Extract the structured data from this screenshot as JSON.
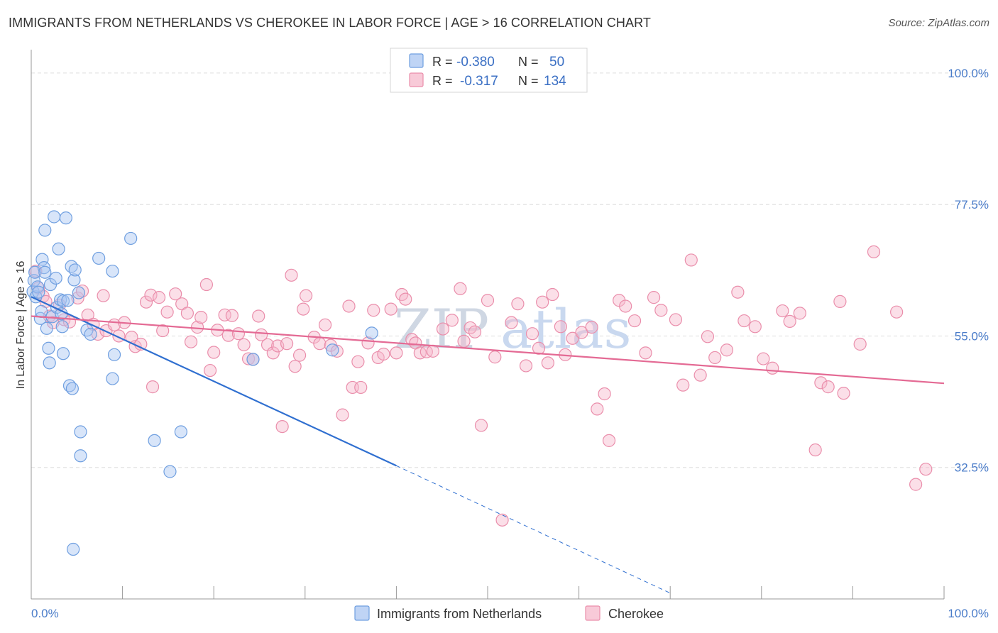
{
  "header": {
    "title": "IMMIGRANTS FROM NETHERLANDS VS CHEROKEE IN LABOR FORCE | AGE > 16 CORRELATION CHART",
    "source": "Source: ZipAtlas.com"
  },
  "watermark": {
    "zip": "ZIP",
    "atlas": "atlas"
  },
  "colors": {
    "blue_fill": "#a9c6f2",
    "blue_stroke": "#6f9fe0",
    "blue_line": "#2f6fd0",
    "pink_fill": "#f6b8cb",
    "pink_stroke": "#ea8eab",
    "pink_line": "#e46a94",
    "grid": "#dddddd",
    "axis": "#999999"
  },
  "legend": {
    "rows": [
      {
        "r_label": "R =",
        "r_value": "-0.380",
        "n_label": "N =",
        "n_value": "50"
      },
      {
        "r_label": "R =",
        "r_value": "-0.317",
        "n_label": "N =",
        "n_value": "134"
      }
    ]
  },
  "chart_data": {
    "type": "scatter",
    "title": "IMMIGRANTS FROM NETHERLANDS VS CHEROKEE IN LABOR FORCE | AGE > 16 CORRELATION CHART",
    "ylabel": "In Labor Force | Age > 16",
    "xlabel": "",
    "xlim": [
      0,
      100
    ],
    "ylim": [
      10,
      104
    ],
    "x_tick_labels": [
      "0.0%",
      "100.0%"
    ],
    "y_ticks": [
      32.5,
      55.0,
      77.5,
      100.0
    ],
    "y_tick_labels": [
      "32.5%",
      "55.0%",
      "77.5%",
      "100.0%"
    ],
    "grid": true,
    "legend_position": "top-center",
    "series": [
      {
        "name": "Immigrants from Netherlands",
        "stats": {
          "r": -0.38,
          "n": 50
        },
        "trend": {
          "x0": 0.0,
          "y0": 61.7,
          "x1": 40.0,
          "y1": 32.8,
          "dash_to_x": 70.0,
          "dash_to_y": 11.0
        },
        "points": [
          [
            0.2,
            62.6
          ],
          [
            0.3,
            64.5
          ],
          [
            0.4,
            65.9
          ],
          [
            0.5,
            61.7
          ],
          [
            0.7,
            63.4
          ],
          [
            0.8,
            62.5
          ],
          [
            1.0,
            58.0
          ],
          [
            1.1,
            59.2
          ],
          [
            1.2,
            68.1
          ],
          [
            1.4,
            66.7
          ],
          [
            1.5,
            65.9
          ],
          [
            1.5,
            73.1
          ],
          [
            1.7,
            56.3
          ],
          [
            1.9,
            52.9
          ],
          [
            2.0,
            50.4
          ],
          [
            2.1,
            63.8
          ],
          [
            2.3,
            58.3
          ],
          [
            2.5,
            75.4
          ],
          [
            2.7,
            64.9
          ],
          [
            2.8,
            59.9
          ],
          [
            3.0,
            69.9
          ],
          [
            3.2,
            61.2
          ],
          [
            3.3,
            58.8
          ],
          [
            3.4,
            56.6
          ],
          [
            3.5,
            61.0
          ],
          [
            3.5,
            52.0
          ],
          [
            3.8,
            75.2
          ],
          [
            4.0,
            61.1
          ],
          [
            4.2,
            46.5
          ],
          [
            4.4,
            66.9
          ],
          [
            4.5,
            46.0
          ],
          [
            4.6,
            18.5
          ],
          [
            4.7,
            64.6
          ],
          [
            4.8,
            66.3
          ],
          [
            5.2,
            62.4
          ],
          [
            5.4,
            34.5
          ],
          [
            5.4,
            38.6
          ],
          [
            6.1,
            56.0
          ],
          [
            6.5,
            55.3
          ],
          [
            7.4,
            68.3
          ],
          [
            8.9,
            66.1
          ],
          [
            8.9,
            47.7
          ],
          [
            9.1,
            51.8
          ],
          [
            10.9,
            71.7
          ],
          [
            13.5,
            37.1
          ],
          [
            15.2,
            31.8
          ],
          [
            16.4,
            38.6
          ],
          [
            24.3,
            51.0
          ],
          [
            33.0,
            52.6
          ],
          [
            37.3,
            55.5
          ]
        ]
      },
      {
        "name": "Cherokee",
        "stats": {
          "r": -0.317,
          "n": 134
        },
        "trend": {
          "x0": 0.0,
          "y0": 58.4,
          "x1": 100.0,
          "y1": 46.9
        },
        "points": [
          [
            0.5,
            66.1
          ],
          [
            0.8,
            63.2
          ],
          [
            1.3,
            61.8
          ],
          [
            1.6,
            60.9
          ],
          [
            2.0,
            58.4
          ],
          [
            2.4,
            57.3
          ],
          [
            3.1,
            60.3
          ],
          [
            3.6,
            57.8
          ],
          [
            4.2,
            57.4
          ],
          [
            5.1,
            61.5
          ],
          [
            5.6,
            62.7
          ],
          [
            6.2,
            58.6
          ],
          [
            6.8,
            57.0
          ],
          [
            7.3,
            55.3
          ],
          [
            7.9,
            61.9
          ],
          [
            8.2,
            55.9
          ],
          [
            9.1,
            56.9
          ],
          [
            9.6,
            55.0
          ],
          [
            10.2,
            57.3
          ],
          [
            11.0,
            54.8
          ],
          [
            11.4,
            53.2
          ],
          [
            12.0,
            53.6
          ],
          [
            12.6,
            60.8
          ],
          [
            13.1,
            62.0
          ],
          [
            13.3,
            46.3
          ],
          [
            14.0,
            61.6
          ],
          [
            14.4,
            55.9
          ],
          [
            14.9,
            59.1
          ],
          [
            15.8,
            62.2
          ],
          [
            16.5,
            60.5
          ],
          [
            17.1,
            58.9
          ],
          [
            17.5,
            54.0
          ],
          [
            18.2,
            56.5
          ],
          [
            18.6,
            58.2
          ],
          [
            19.2,
            63.8
          ],
          [
            19.6,
            49.1
          ],
          [
            20.0,
            52.2
          ],
          [
            20.4,
            56.0
          ],
          [
            21.2,
            58.6
          ],
          [
            21.6,
            55.1
          ],
          [
            22.0,
            58.5
          ],
          [
            22.7,
            55.4
          ],
          [
            23.3,
            53.5
          ],
          [
            23.8,
            51.1
          ],
          [
            24.3,
            51.0
          ],
          [
            24.9,
            58.4
          ],
          [
            25.2,
            55.2
          ],
          [
            25.9,
            53.5
          ],
          [
            26.5,
            52.1
          ],
          [
            27.0,
            53.3
          ],
          [
            27.5,
            39.5
          ],
          [
            28.0,
            53.7
          ],
          [
            28.5,
            65.4
          ],
          [
            28.9,
            49.8
          ],
          [
            29.4,
            51.7
          ],
          [
            29.8,
            59.6
          ],
          [
            30.1,
            61.9
          ],
          [
            31.0,
            54.8
          ],
          [
            31.6,
            53.7
          ],
          [
            32.2,
            56.9
          ],
          [
            32.8,
            53.4
          ],
          [
            33.5,
            52.4
          ],
          [
            34.1,
            41.5
          ],
          [
            34.8,
            60.1
          ],
          [
            35.2,
            46.2
          ],
          [
            35.8,
            50.6
          ],
          [
            36.1,
            46.2
          ],
          [
            36.9,
            53.8
          ],
          [
            37.5,
            59.4
          ],
          [
            38.0,
            51.3
          ],
          [
            38.6,
            51.9
          ],
          [
            39.4,
            59.6
          ],
          [
            40.0,
            52.1
          ],
          [
            40.6,
            62.1
          ],
          [
            41.0,
            61.3
          ],
          [
            41.7,
            54.4
          ],
          [
            42.1,
            53.8
          ],
          [
            42.6,
            52.1
          ],
          [
            43.3,
            52.3
          ],
          [
            44.0,
            52.4
          ],
          [
            45.1,
            56.2
          ],
          [
            46.1,
            57.7
          ],
          [
            47.0,
            63.1
          ],
          [
            47.4,
            54.1
          ],
          [
            48.1,
            56.4
          ],
          [
            48.6,
            55.7
          ],
          [
            49.3,
            39.7
          ],
          [
            50.0,
            61.1
          ],
          [
            50.8,
            51.4
          ],
          [
            51.6,
            23.5
          ],
          [
            52.6,
            57.3
          ],
          [
            53.3,
            60.5
          ],
          [
            54.2,
            49.9
          ],
          [
            54.9,
            55.4
          ],
          [
            55.6,
            52.9
          ],
          [
            56.0,
            60.8
          ],
          [
            56.6,
            50.4
          ],
          [
            57.1,
            62.1
          ],
          [
            58.0,
            56.6
          ],
          [
            58.5,
            51.8
          ],
          [
            59.3,
            54.6
          ],
          [
            60.3,
            55.6
          ],
          [
            61.4,
            56.5
          ],
          [
            62.0,
            42.5
          ],
          [
            62.8,
            45.1
          ],
          [
            63.3,
            37.1
          ],
          [
            64.4,
            61.1
          ],
          [
            65.1,
            60.1
          ],
          [
            66.1,
            57.6
          ],
          [
            67.3,
            52.1
          ],
          [
            68.2,
            61.6
          ],
          [
            69.0,
            59.4
          ],
          [
            70.6,
            57.8
          ],
          [
            71.4,
            46.6
          ],
          [
            72.3,
            68.0
          ],
          [
            73.3,
            48.3
          ],
          [
            74.1,
            54.9
          ],
          [
            74.9,
            51.3
          ],
          [
            76.2,
            52.6
          ],
          [
            77.4,
            62.5
          ],
          [
            78.1,
            57.6
          ],
          [
            79.3,
            56.6
          ],
          [
            80.2,
            51.1
          ],
          [
            81.2,
            49.5
          ],
          [
            82.3,
            59.3
          ],
          [
            83.1,
            57.5
          ],
          [
            84.2,
            58.9
          ],
          [
            85.9,
            35.5
          ],
          [
            86.5,
            47.0
          ],
          [
            87.3,
            46.3
          ],
          [
            88.6,
            60.9
          ],
          [
            89.0,
            45.2
          ],
          [
            90.8,
            53.6
          ],
          [
            92.3,
            69.4
          ],
          [
            94.8,
            59.1
          ],
          [
            96.9,
            29.6
          ],
          [
            98.0,
            32.2
          ]
        ]
      }
    ]
  }
}
